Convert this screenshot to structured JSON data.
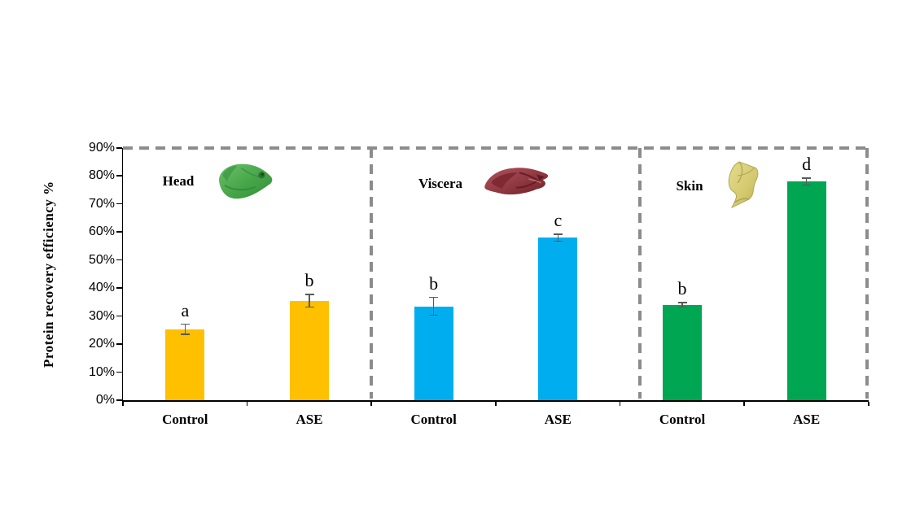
{
  "figure": {
    "background": "#ffffff"
  },
  "chart_data": {
    "type": "bar",
    "title": "",
    "xlabel": "",
    "ylabel": "Protein recovery efficiency %",
    "ylim": [
      0,
      90
    ],
    "ytick_step": 10,
    "ytick_labels": [
      "0%",
      "10%",
      "20%",
      "30%",
      "40%",
      "50%",
      "60%",
      "70%",
      "80%",
      "90%"
    ],
    "grid": false,
    "legend": "none",
    "categories": [
      "Control",
      "ASE"
    ],
    "groups": [
      {
        "name": "Head",
        "icon": "fish-head-icon",
        "bar_color": "#FFC000",
        "bars": [
          {
            "category": "Control",
            "value": 25.3,
            "error": 1.8,
            "letter": "a"
          },
          {
            "category": "ASE",
            "value": 35.5,
            "error": 2.3,
            "letter": "b"
          }
        ]
      },
      {
        "name": "Viscera",
        "icon": "viscera-icon",
        "bar_color": "#00AEEF",
        "bars": [
          {
            "category": "Control",
            "value": 33.5,
            "error": 3.2,
            "letter": "b"
          },
          {
            "category": "ASE",
            "value": 58.0,
            "error": 1.3,
            "letter": "c"
          }
        ]
      },
      {
        "name": "Skin",
        "icon": "skin-icon",
        "bar_color": "#00A651",
        "bars": [
          {
            "category": "Control",
            "value": 34.0,
            "error": 0.8,
            "letter": "b"
          },
          {
            "category": "ASE",
            "value": 78.0,
            "error": 1.2,
            "letter": "d"
          }
        ]
      }
    ],
    "error_bar_color": "#595959",
    "panel_border_color": "#8C8C8C",
    "axis_color": "#000000"
  }
}
